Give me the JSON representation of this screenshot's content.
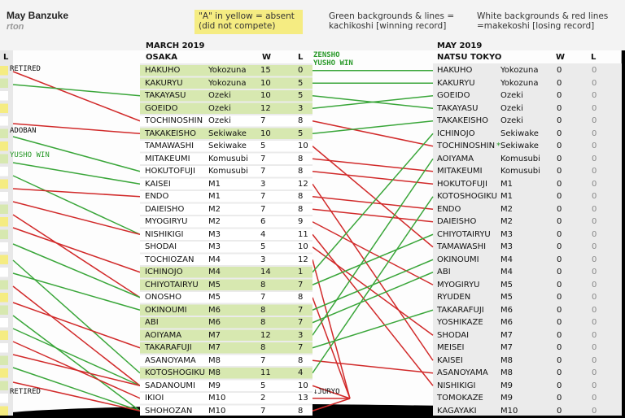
{
  "header": {
    "title": "May Banzuke",
    "author": "rton",
    "note_absent": "\"A\" in yellow = absent (did not compete)",
    "note_green": "Green backgrounds & lines = kachikoshi [winning record]",
    "note_white": "White backgrounds & red lines =makekoshi [losing record]",
    "left_col_header": "L"
  },
  "colors": {
    "green_bg": "#d7e8b0",
    "green_line": "#3aa63a",
    "red_line": "#d12a2a",
    "yellow": "#f5ec82",
    "panel": "#e4e4e4"
  },
  "chart_data": {
    "type": "table",
    "left_margin_labels": [
      "RETIRED",
      "ADOBAN",
      "YUSHO WIN",
      "RETIRED"
    ],
    "march": {
      "title": "MARCH 2019",
      "subtitle": "OSAKA",
      "col_w": "W",
      "col_l": "L",
      "rows": [
        {
          "name": "HAKUHO",
          "rank": "Yokozuna",
          "w": "15",
          "l": "0",
          "kachikoshi": true
        },
        {
          "name": "KAKURYU",
          "rank": "Yokozuna",
          "w": "10",
          "l": "5",
          "kachikoshi": true
        },
        {
          "name": "TAKAYASU",
          "rank": "Ozeki",
          "w": "10",
          "l": "5",
          "kachikoshi": true
        },
        {
          "name": "GOEIDO",
          "rank": "Ozeki",
          "w": "12",
          "l": "3",
          "kachikoshi": true
        },
        {
          "name": "TOCHINOSHIN",
          "rank": "Ozeki",
          "w": "7",
          "l": "8",
          "kachikoshi": false
        },
        {
          "name": "TAKAKEISHO",
          "rank": "Sekiwake",
          "w": "10",
          "l": "5",
          "kachikoshi": true
        },
        {
          "name": "TAMAWASHI",
          "rank": "Sekiwake",
          "w": "5",
          "l": "10",
          "kachikoshi": false
        },
        {
          "name": "MITAKEUMI",
          "rank": "Komusubi",
          "w": "7",
          "l": "8",
          "kachikoshi": false
        },
        {
          "name": "HOKUTOFUJI",
          "rank": "Komusubi",
          "w": "7",
          "l": "8",
          "kachikoshi": false
        },
        {
          "name": "KAISEI",
          "rank": "M1",
          "w": "3",
          "l": "12",
          "kachikoshi": false
        },
        {
          "name": "ENDO",
          "rank": "M1",
          "w": "7",
          "l": "8",
          "kachikoshi": false
        },
        {
          "name": "DAIEISHO",
          "rank": "M2",
          "w": "7",
          "l": "8",
          "kachikoshi": false
        },
        {
          "name": "MYOGIRYU",
          "rank": "M2",
          "w": "6",
          "l": "9",
          "kachikoshi": false
        },
        {
          "name": "NISHIKIGI",
          "rank": "M3",
          "w": "4",
          "l": "11",
          "kachikoshi": false
        },
        {
          "name": "SHODAI",
          "rank": "M3",
          "w": "5",
          "l": "10",
          "kachikoshi": false
        },
        {
          "name": "TOCHIOZAN",
          "rank": "M4",
          "w": "3",
          "l": "12",
          "kachikoshi": false
        },
        {
          "name": "ICHINOJO",
          "rank": "M4",
          "w": "14",
          "l": "1",
          "kachikoshi": true
        },
        {
          "name": "CHIYOTAIRYU",
          "rank": "M5",
          "w": "8",
          "l": "7",
          "kachikoshi": true
        },
        {
          "name": "ONOSHO",
          "rank": "M5",
          "w": "7",
          "l": "8",
          "kachikoshi": false
        },
        {
          "name": "OKINOUMI",
          "rank": "M6",
          "w": "8",
          "l": "7",
          "kachikoshi": true
        },
        {
          "name": "ABI",
          "rank": "M6",
          "w": "8",
          "l": "7",
          "kachikoshi": true
        },
        {
          "name": "AOIYAMA",
          "rank": "M7",
          "w": "12",
          "l": "3",
          "kachikoshi": true
        },
        {
          "name": "TAKARAFUJI",
          "rank": "M7",
          "w": "8",
          "l": "7",
          "kachikoshi": true
        },
        {
          "name": "ASANOYAMA",
          "rank": "M8",
          "w": "7",
          "l": "8",
          "kachikoshi": false
        },
        {
          "name": "KOTOSHOGIKU",
          "rank": "M8",
          "w": "11",
          "l": "4",
          "kachikoshi": true
        },
        {
          "name": "SADANOUMI",
          "rank": "M9",
          "w": "5",
          "l": "10",
          "kachikoshi": false
        },
        {
          "name": "IKIOI",
          "rank": "M10",
          "w": "2",
          "l": "13",
          "kachikoshi": false
        },
        {
          "name": "SHOHOZAN",
          "rank": "M10",
          "w": "7",
          "l": "8",
          "kachikoshi": false
        }
      ]
    },
    "may": {
      "title": "MAY 2019",
      "subtitle": "NATSU TOKYO",
      "col_w": "W",
      "col_l": "L",
      "rows": [
        {
          "name": "HAKUHO",
          "rank": "Yokozuna",
          "w": "0",
          "l": "0"
        },
        {
          "name": "KAKURYU",
          "rank": "Yokozuna",
          "w": "0",
          "l": "0"
        },
        {
          "name": "GOEIDO",
          "rank": "Ozeki",
          "w": "0",
          "l": "0"
        },
        {
          "name": "TAKAYASU",
          "rank": "Ozeki",
          "w": "0",
          "l": "0"
        },
        {
          "name": "TAKAKEISHO",
          "rank": "Ozeki",
          "w": "0",
          "l": "0"
        },
        {
          "name": "ICHINOJO",
          "rank": "Sekiwake",
          "w": "0",
          "l": "0"
        },
        {
          "name": "TOCHINOSHIN",
          "rank": "Sekiwake",
          "w": "0",
          "l": "0",
          "marker": "*"
        },
        {
          "name": "AOIYAMA",
          "rank": "Komusubi",
          "w": "0",
          "l": "0"
        },
        {
          "name": "MITAKEUMI",
          "rank": "Komusubi",
          "w": "0",
          "l": "0"
        },
        {
          "name": "HOKUTOFUJI",
          "rank": "M1",
          "w": "0",
          "l": "0"
        },
        {
          "name": "KOTOSHOGIKU",
          "rank": "M1",
          "w": "0",
          "l": "0"
        },
        {
          "name": "ENDO",
          "rank": "M2",
          "w": "0",
          "l": "0"
        },
        {
          "name": "DAIEISHO",
          "rank": "M2",
          "w": "0",
          "l": "0"
        },
        {
          "name": "CHIYOTAIRYU",
          "rank": "M3",
          "w": "0",
          "l": "0"
        },
        {
          "name": "TAMAWASHI",
          "rank": "M3",
          "w": "0",
          "l": "0"
        },
        {
          "name": "OKINOUMI",
          "rank": "M4",
          "w": "0",
          "l": "0"
        },
        {
          "name": "ABI",
          "rank": "M4",
          "w": "0",
          "l": "0"
        },
        {
          "name": "MYOGIRYU",
          "rank": "M5",
          "w": "0",
          "l": "0"
        },
        {
          "name": "RYUDEN",
          "rank": "M5",
          "w": "0",
          "l": "0"
        },
        {
          "name": "TAKARAFUJI",
          "rank": "M6",
          "w": "0",
          "l": "0"
        },
        {
          "name": "YOSHIKAZE",
          "rank": "M6",
          "w": "0",
          "l": "0"
        },
        {
          "name": "SHODAI",
          "rank": "M7",
          "w": "0",
          "l": "0"
        },
        {
          "name": "MEISEI",
          "rank": "M7",
          "w": "0",
          "l": "0"
        },
        {
          "name": "KAISEI",
          "rank": "M8",
          "w": "0",
          "l": "0"
        },
        {
          "name": "ASANOYAMA",
          "rank": "M8",
          "w": "0",
          "l": "0"
        },
        {
          "name": "NISHIKIGI",
          "rank": "M9",
          "w": "0",
          "l": "0"
        },
        {
          "name": "TOMOKAZE",
          "rank": "M9",
          "w": "0",
          "l": "0"
        },
        {
          "name": "KAGAYAKI",
          "rank": "M10",
          "w": "0",
          "l": "0"
        }
      ]
    },
    "annotations": {
      "zensho_yusho": "ZENSHO YUSHO WIN",
      "juryo": "JURYO"
    }
  }
}
